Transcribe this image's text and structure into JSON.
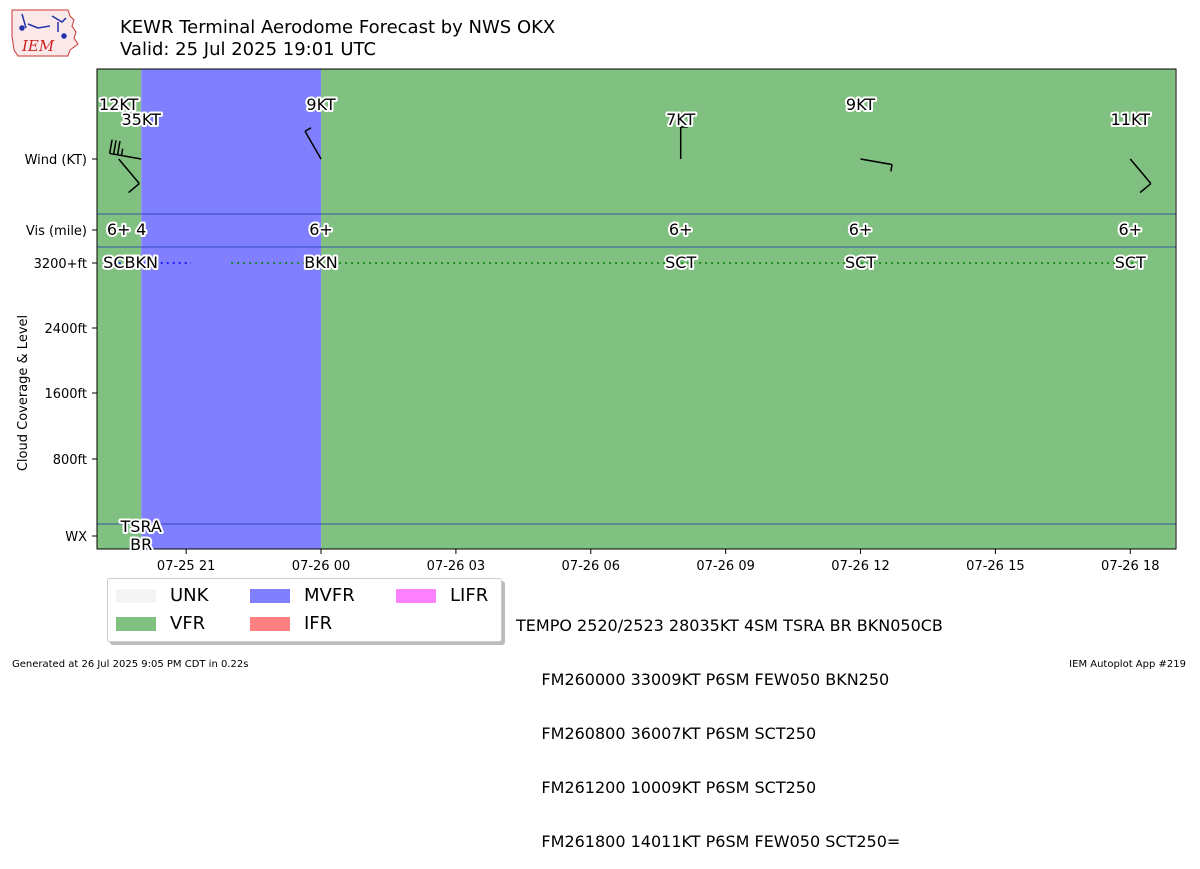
{
  "header": {
    "title_line1": "KEWR Terminal Aerodome Forecast by NWS OKX",
    "title_line2": "Valid: 25 Jul 2025 19:01 UTC",
    "logo_text": "IEM"
  },
  "footer": {
    "generated": "Generated at 26 Jul 2025 9:05 PM CDT in 0.22s",
    "app": "IEM Autoplot App #219"
  },
  "legend": [
    {
      "label": "UNK",
      "color": "#f4f4f4"
    },
    {
      "label": "VFR",
      "color": "#80c080"
    },
    {
      "label": "MVFR",
      "color": "#8080ff"
    },
    {
      "label": "IFR",
      "color": "#ff8080"
    },
    {
      "label": "LIFR",
      "color": "#ff80ff"
    }
  ],
  "taf_text": [
    "TEMPO 2520/2523 28035KT 4SM TSRA BR BKN050CB",
    "     FM260000 33009KT P6SM FEW050 BKN250",
    "     FM260800 36007KT P6SM SCT250",
    "     FM261200 10009KT P6SM SCT250",
    "     FM261800 14011KT P6SM FEW050 SCT250="
  ],
  "chart_data": {
    "type": "timeline",
    "ylabel": "Cloud Coverage & Level",
    "x_axis": {
      "start": "2025-07-25 19:01",
      "end": "2025-07-26 19:00",
      "ticks": [
        "07-25 21",
        "07-26 00",
        "07-26 03",
        "07-26 06",
        "07-26 09",
        "07-26 12",
        "07-26 15",
        "07-26 18"
      ],
      "tick_hours_from_start": [
        1.983,
        4.983,
        7.983,
        10.983,
        13.983,
        16.983,
        19.983,
        22.983
      ]
    },
    "y_rows": [
      "Wind (KT)",
      "Vis (mile)",
      "3200+ft",
      "2400ft",
      "1600ft",
      "800ft",
      "WX"
    ],
    "categories_periods": [
      {
        "from": "07-25 19:01",
        "to": "07-25 20:00",
        "category": "VFR"
      },
      {
        "from": "07-25 20:00",
        "to": "07-26 00:00",
        "category": "MVFR"
      },
      {
        "from": "07-26 00:00",
        "to": "07-26 19:00",
        "category": "VFR"
      }
    ],
    "forecasts": [
      {
        "time": "07-25 19:30",
        "hours": 0.483,
        "wind_dir": 140,
        "wind_kt": 12,
        "wind_label": "12KT",
        "vis": "6+",
        "cloud": "SCT",
        "wx": ""
      },
      {
        "time": "07-25 20:00",
        "hours": 0.983,
        "wind_dir": 280,
        "wind_kt": 35,
        "wind_label": "35KT",
        "vis": "4",
        "cloud": "BKN",
        "wx": "TSRA\nBR"
      },
      {
        "time": "07-26 00:00",
        "hours": 4.983,
        "wind_dir": 330,
        "wind_kt": 9,
        "wind_label": "9KT",
        "vis": "6+",
        "cloud": "BKN",
        "wx": ""
      },
      {
        "time": "07-26 08:00",
        "hours": 12.983,
        "wind_dir": 360,
        "wind_kt": 7,
        "wind_label": "7KT",
        "vis": "6+",
        "cloud": "SCT",
        "wx": ""
      },
      {
        "time": "07-26 12:00",
        "hours": 16.983,
        "wind_dir": 100,
        "wind_kt": 9,
        "wind_label": "9KT",
        "vis": "6+",
        "cloud": "SCT",
        "wx": ""
      },
      {
        "time": "07-26 18:00",
        "hours": 22.983,
        "wind_dir": 140,
        "wind_kt": 11,
        "wind_label": "11KT",
        "vis": "6+",
        "cloud": "SCT",
        "wx": ""
      }
    ],
    "cloud_lines": [
      {
        "from_hours": 0.483,
        "to_hours": 2.983,
        "color": "#0000ff",
        "style": "dotted"
      },
      {
        "from_hours": 2.983,
        "to_hours": 24,
        "color": "#008000",
        "style": "dotted"
      }
    ]
  }
}
